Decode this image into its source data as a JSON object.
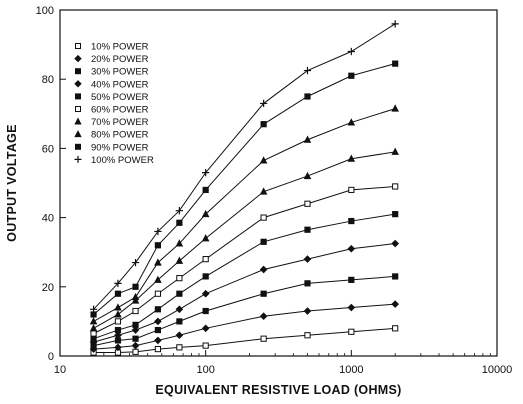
{
  "chart_data": {
    "type": "line",
    "title": "",
    "xlabel": "EQUIVALENT RESISTIVE LOAD (OHMS)",
    "ylabel": "OUTPUT VOLTAGE",
    "x_scale": "log",
    "xlim": [
      10,
      10000
    ],
    "ylim": [
      0,
      100
    ],
    "x_ticks": [
      10,
      100,
      1000,
      10000
    ],
    "x_tick_labels": [
      "10",
      "100",
      "1000",
      "10000"
    ],
    "y_ticks": [
      0,
      20,
      40,
      60,
      80,
      100
    ],
    "y_tick_labels": [
      "0",
      "20",
      "40",
      "60",
      "80",
      "100"
    ],
    "grid": false,
    "legend_position": "top-left",
    "x": [
      17,
      25,
      33,
      47,
      66,
      100,
      250,
      500,
      1000,
      2000
    ],
    "series": [
      {
        "name": "10% POWER",
        "marker": "square-open",
        "values": [
          1,
          1,
          1.2,
          2,
          2.5,
          3,
          5,
          6,
          7,
          8
        ]
      },
      {
        "name": "20% POWER",
        "marker": "diamond",
        "values": [
          2,
          2.5,
          3,
          4.5,
          6,
          8,
          11.5,
          13,
          14,
          15
        ]
      },
      {
        "name": "30% POWER",
        "marker": "square",
        "values": [
          3,
          4.5,
          5,
          7.5,
          10,
          13,
          18,
          21,
          22,
          23
        ]
      },
      {
        "name": "40% POWER",
        "marker": "diamond",
        "values": [
          4,
          6,
          7.5,
          10,
          13.5,
          18,
          25,
          28,
          31,
          32.5
        ]
      },
      {
        "name": "50% POWER",
        "marker": "square",
        "values": [
          5,
          7.5,
          9,
          13.5,
          18,
          23,
          33,
          36.5,
          39,
          41
        ]
      },
      {
        "name": "60% POWER",
        "marker": "square-open",
        "values": [
          6.5,
          10,
          13,
          18,
          22.5,
          28,
          40,
          44,
          48,
          49
        ]
      },
      {
        "name": "70% POWER",
        "marker": "triangle",
        "values": [
          8,
          12,
          16,
          22,
          27.5,
          34,
          47.5,
          52,
          57,
          59
        ]
      },
      {
        "name": "80% POWER",
        "marker": "triangle",
        "values": [
          10,
          14,
          17,
          27,
          32.5,
          41,
          56.5,
          62.5,
          67.5,
          71.5
        ]
      },
      {
        "name": "90% POWER",
        "marker": "square",
        "values": [
          12,
          18,
          20,
          32,
          38.5,
          48,
          67,
          75,
          81,
          84.5
        ]
      },
      {
        "name": "100% POWER",
        "marker": "plus",
        "values": [
          13.5,
          21,
          27,
          36,
          42,
          53,
          73,
          82.5,
          88,
          96
        ]
      }
    ]
  }
}
